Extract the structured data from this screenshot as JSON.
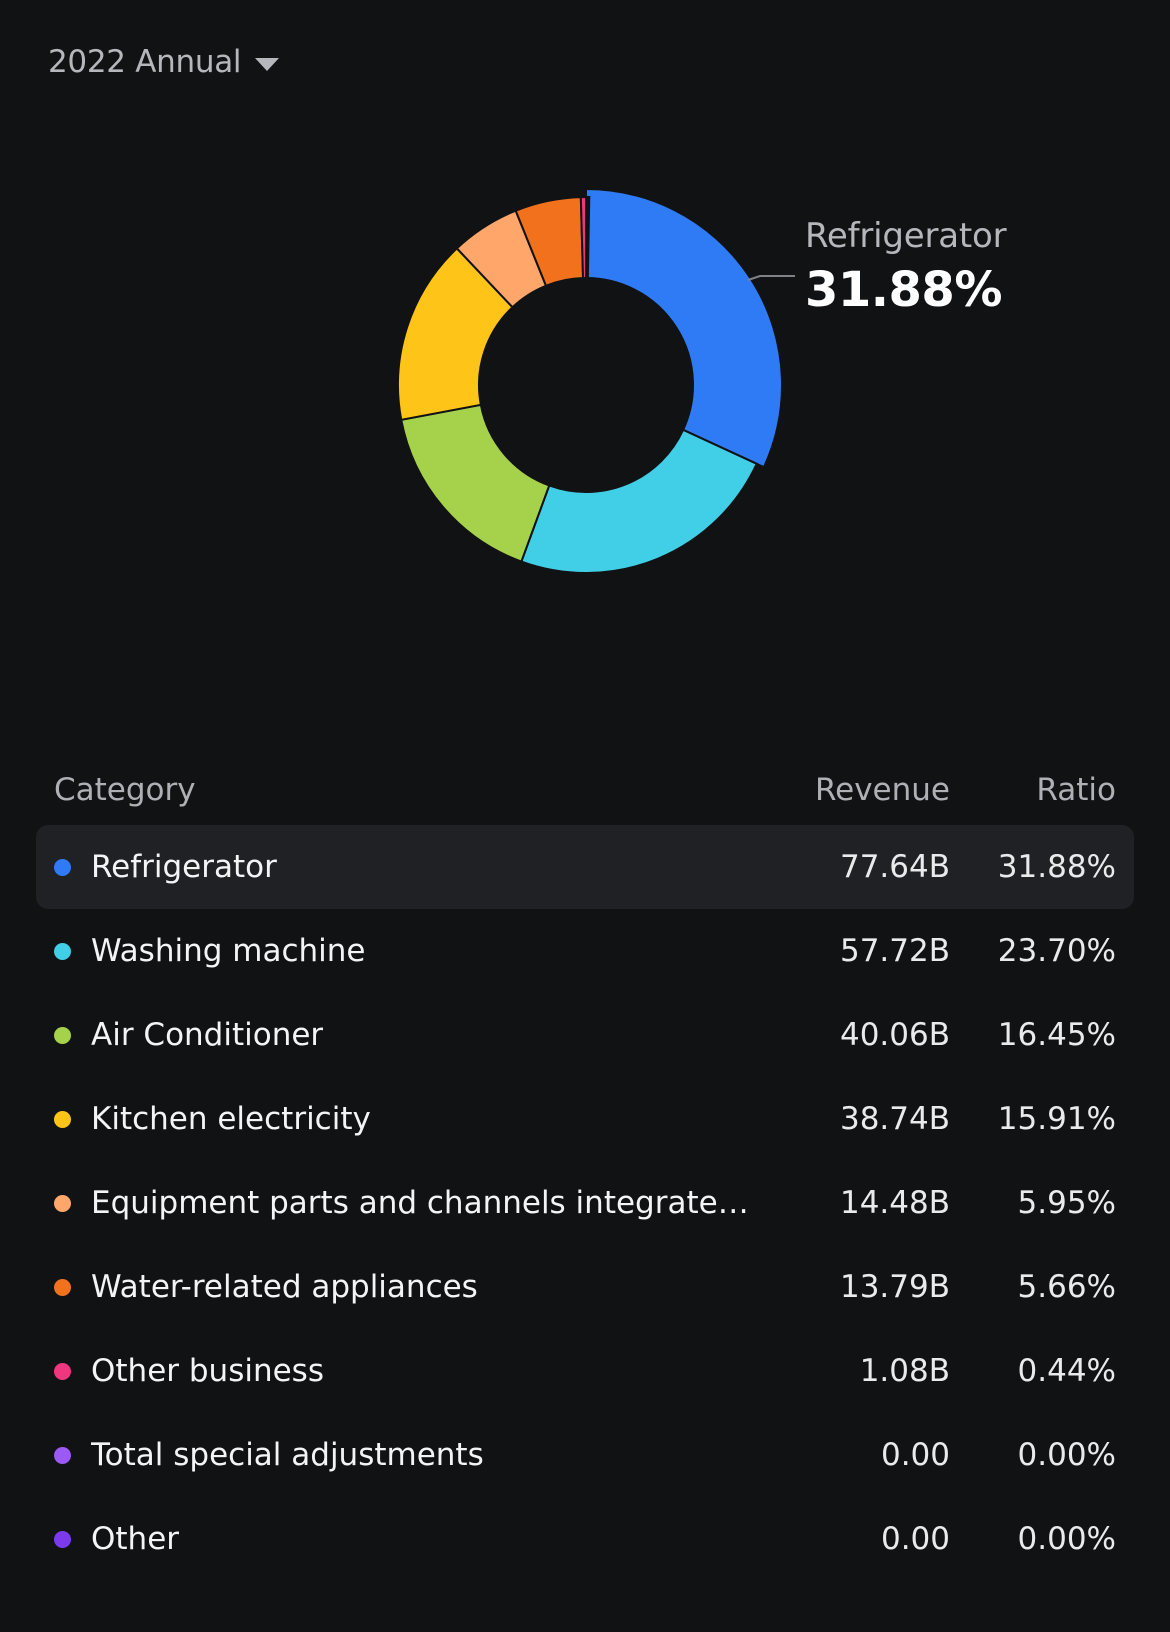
{
  "period_selector": {
    "label": "2022 Annual",
    "icon": "caret-down-icon"
  },
  "callout": {
    "name": "Refrigerator",
    "value": "31.88%"
  },
  "table": {
    "headers": {
      "category": "Category",
      "revenue": "Revenue",
      "ratio": "Ratio"
    },
    "selected_index": 0,
    "rows": [
      {
        "category": "Refrigerator",
        "revenue": "77.64B",
        "ratio": "31.88%",
        "color": "#2f7bf5"
      },
      {
        "category": "Washing machine",
        "revenue": "57.72B",
        "ratio": "23.70%",
        "color": "#40cfe6"
      },
      {
        "category": "Air Conditioner",
        "revenue": "40.06B",
        "ratio": "16.45%",
        "color": "#a6d14a"
      },
      {
        "category": "Kitchen electricity",
        "revenue": "38.74B",
        "ratio": "15.91%",
        "color": "#fec417"
      },
      {
        "category": "Equipment parts and channels integrated services",
        "revenue": "14.48B",
        "ratio": "5.95%",
        "color": "#ffa76b"
      },
      {
        "category": "Water-related appliances",
        "revenue": "13.79B",
        "ratio": "5.66%",
        "color": "#f2711c"
      },
      {
        "category": "Other business",
        "revenue": "1.08B",
        "ratio": "0.44%",
        "color": "#f0367e"
      },
      {
        "category": "Total special adjustments",
        "revenue": "0.00",
        "ratio": "0.00%",
        "color": "#9b59f5"
      },
      {
        "category": "Other",
        "revenue": "0.00",
        "ratio": "0.00%",
        "color": "#7c3aed"
      }
    ]
  },
  "chart_data": {
    "type": "pie",
    "style": "donut",
    "highlighted": "Refrigerator",
    "categories": [
      "Refrigerator",
      "Washing machine",
      "Air Conditioner",
      "Kitchen electricity",
      "Equipment parts and channels integrated services",
      "Water-related appliances",
      "Other business",
      "Total special adjustments",
      "Other"
    ],
    "values": [
      31.88,
      23.7,
      16.45,
      15.91,
      5.95,
      5.66,
      0.44,
      0.0,
      0.0
    ],
    "colors": [
      "#2f7bf5",
      "#40cfe6",
      "#a6d14a",
      "#fec417",
      "#ffa76b",
      "#f2711c",
      "#f0367e",
      "#9b59f5",
      "#7c3aed"
    ]
  }
}
